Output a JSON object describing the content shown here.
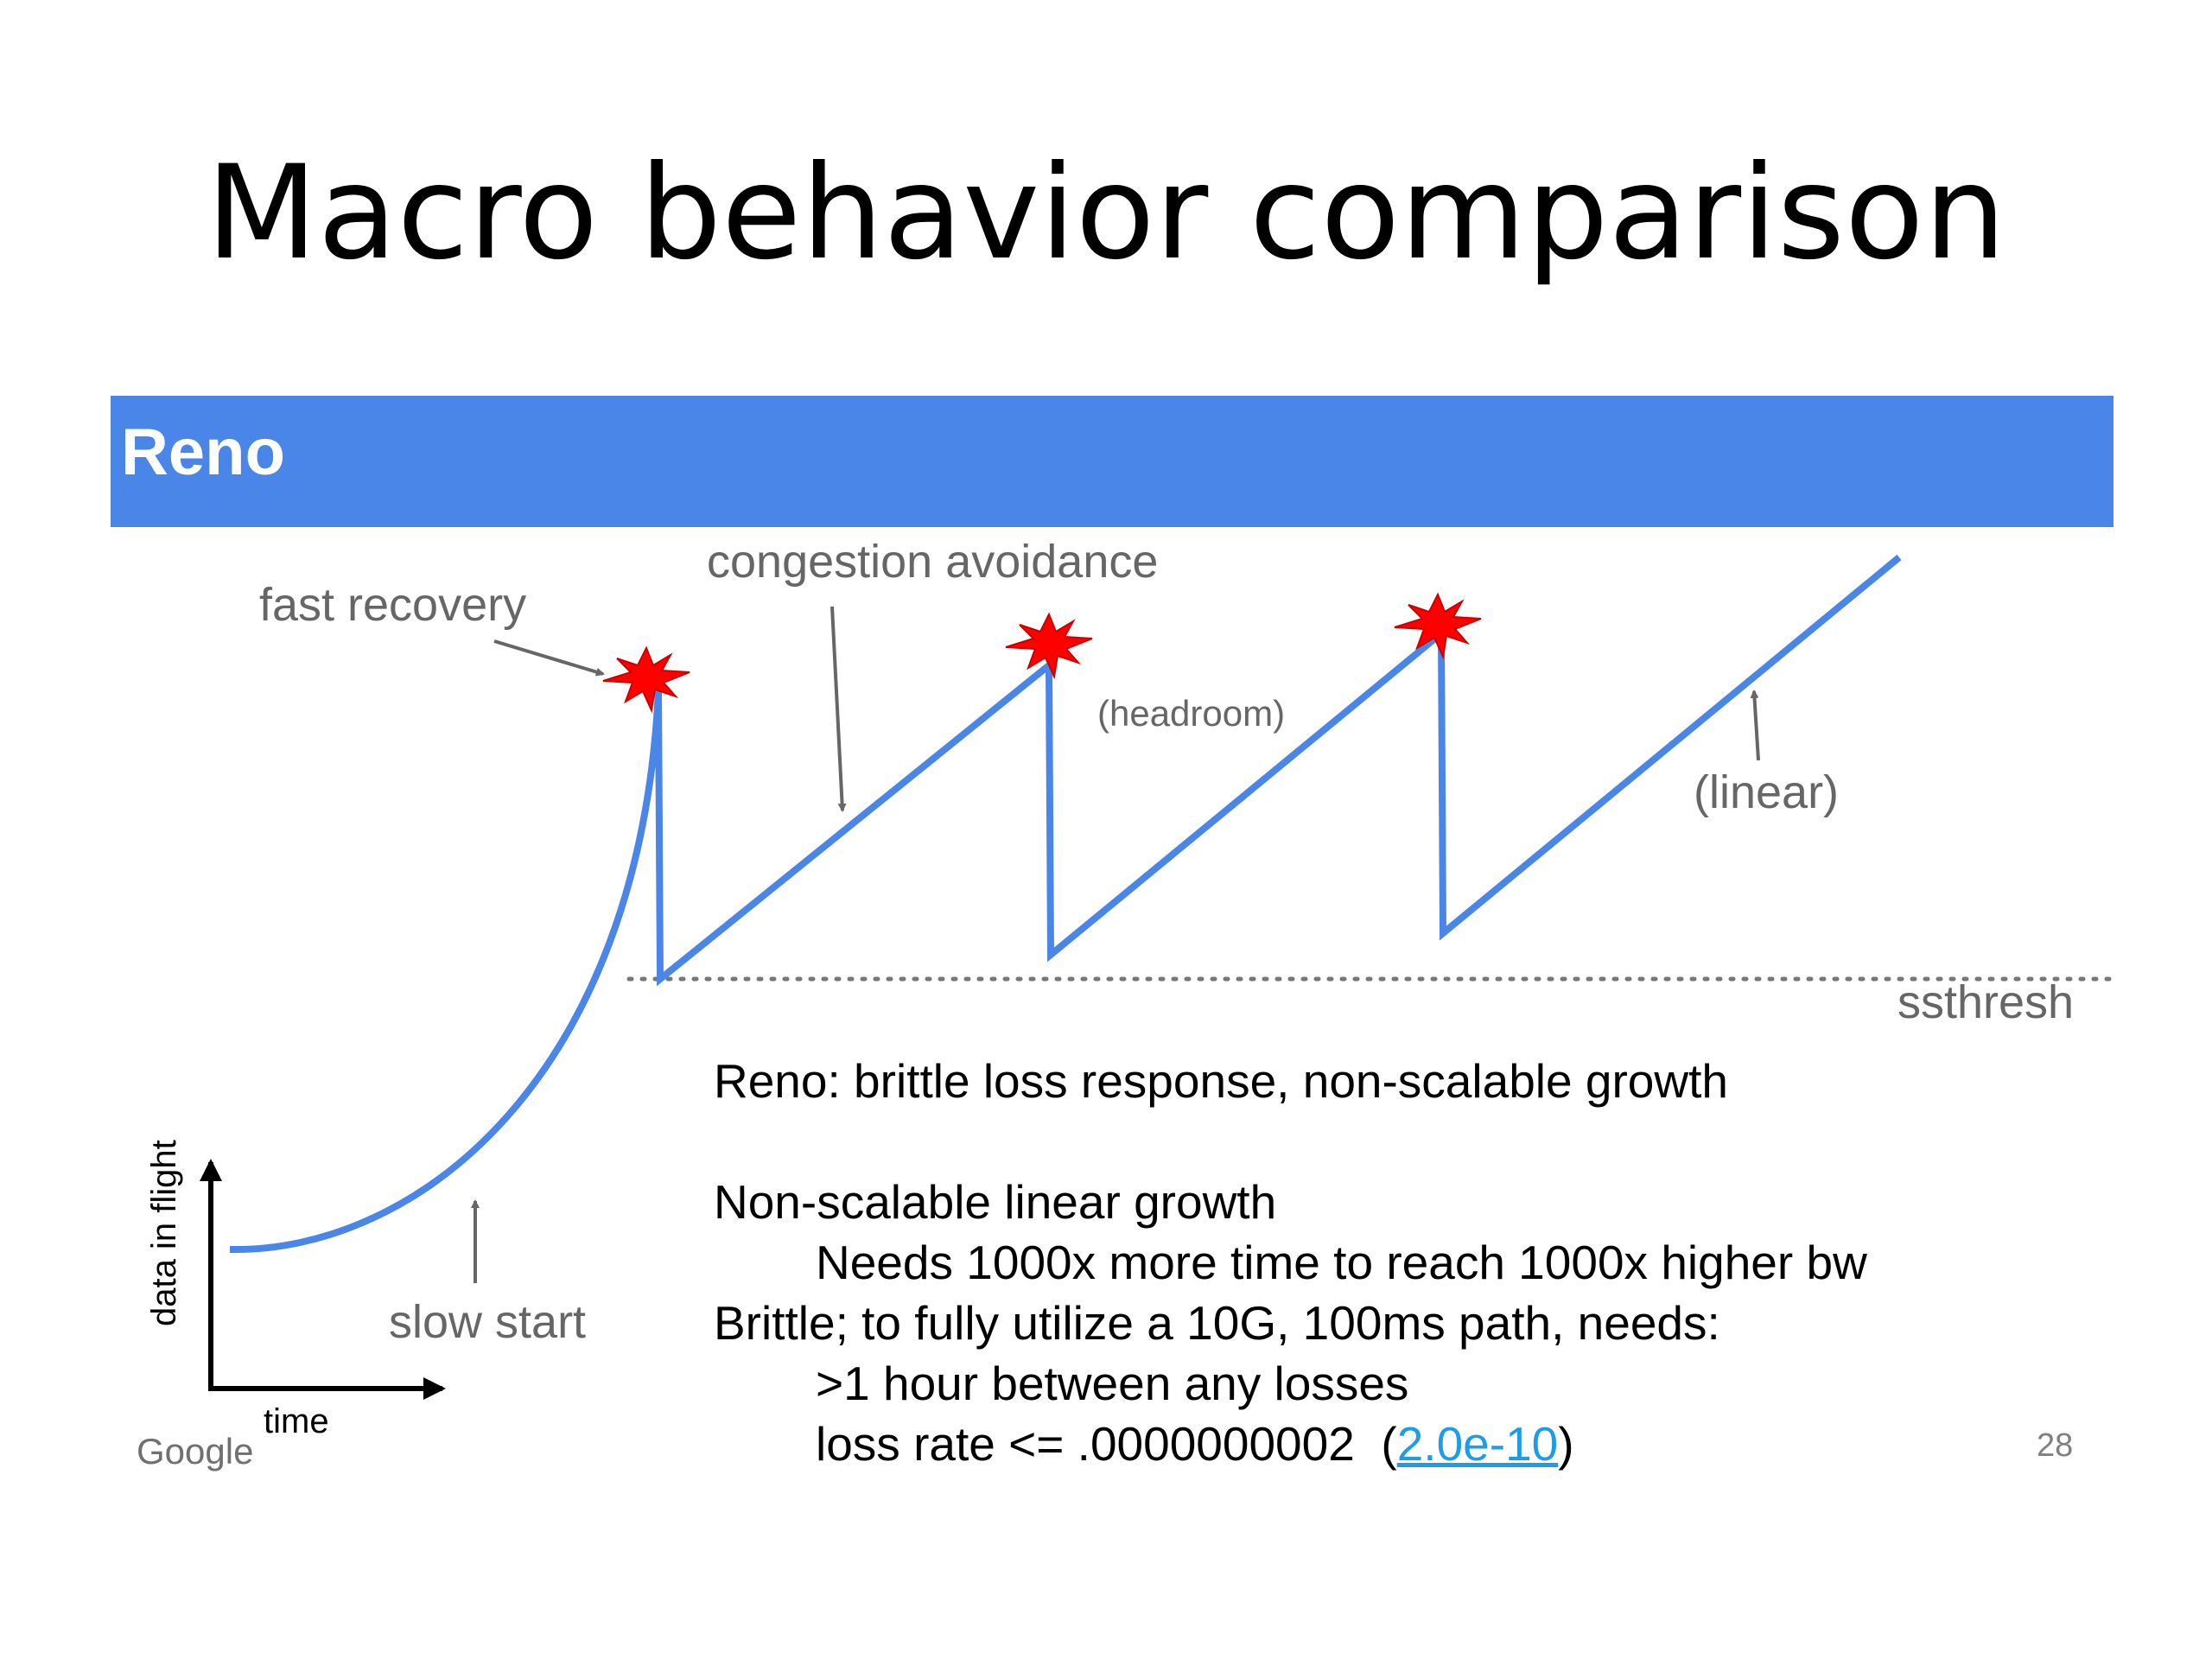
{
  "title": "Macro behavior comparison",
  "banner": {
    "label": "Reno",
    "color": "#4a86e8"
  },
  "diagram": {
    "labels": {
      "fast_recovery": "fast recovery",
      "congestion_avoidance": "congestion avoidance",
      "headroom": "(headroom)",
      "linear": "(linear)",
      "ssthresh": "ssthresh",
      "slow_start": "slow start",
      "y_axis": "data in flight",
      "x_axis": "time"
    },
    "line_color": "#4a86e8",
    "loss_marker_color": "#ff0000",
    "loss_events": 3
  },
  "notes": {
    "heading": "Reno: brittle loss response, non-scalable growth",
    "line1": "Non-scalable linear growth",
    "line2": "Needs 1000x more time to reach 1000x higher bw",
    "line3": "Brittle; to fully utilize a 10G, 100ms path, needs:",
    "line4": ">1 hour between any losses",
    "line5_prefix": "loss rate <= .0000000002  (",
    "line5_link": "2.0e-10",
    "line5_suffix": ")"
  },
  "page_number": "28",
  "logo": "Google"
}
